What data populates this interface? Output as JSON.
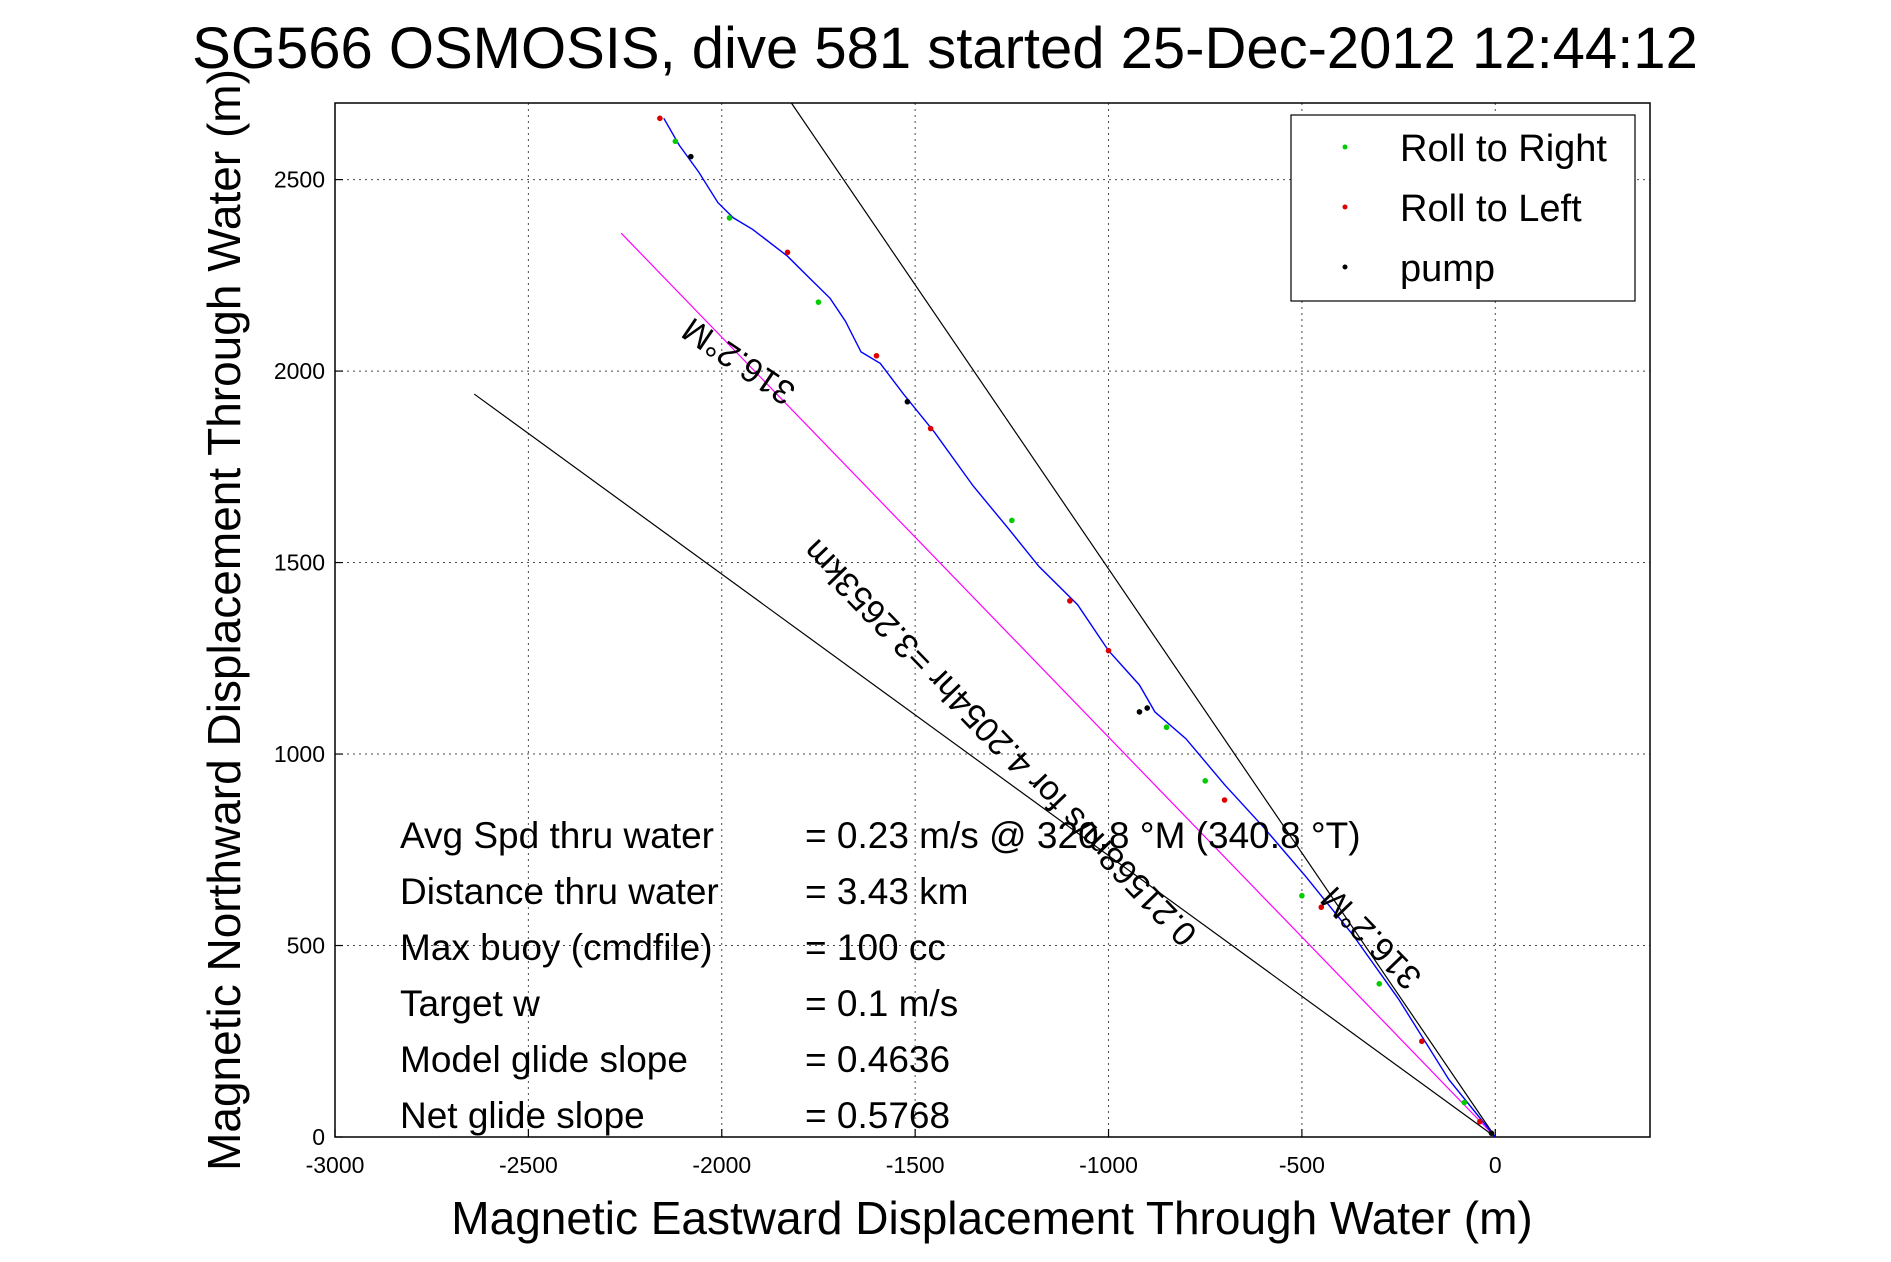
{
  "chart_data": {
    "type": "line",
    "title": "SG566 OSMOSIS, dive 581 started 25-Dec-2012 12:44:12",
    "xlabel": "Magnetic Eastward Displacement Through Water (m)",
    "ylabel": "Magnetic Northward Displacement Through Water (m)",
    "xlim": [
      -3000,
      400
    ],
    "ylim": [
      0,
      2700
    ],
    "xticks": [
      -3000,
      -2500,
      -2000,
      -1500,
      -1000,
      -500,
      0
    ],
    "yticks": [
      0,
      500,
      1000,
      1500,
      2000,
      2500
    ],
    "grid": true,
    "legend_position": "top-right",
    "legend": [
      {
        "label": "Roll to Right",
        "color": "#00cc00"
      },
      {
        "label": "Roll to Left",
        "color": "#dd0000"
      },
      {
        "label": "pump",
        "color": "#000000"
      }
    ],
    "track": {
      "color": "#0000ff",
      "x": [
        0,
        -120,
        -250,
        -370,
        -490,
        -600,
        -700,
        -800,
        -880,
        -920,
        -1000,
        -1080,
        -1180,
        -1260,
        -1350,
        -1450,
        -1530,
        -1590,
        -1640,
        -1680,
        -1720,
        -1770,
        -1830,
        -1920,
        -1970,
        -2010,
        -2060,
        -2110,
        -2150
      ],
      "y": [
        0,
        150,
        360,
        530,
        680,
        810,
        920,
        1040,
        1110,
        1180,
        1270,
        1390,
        1490,
        1590,
        1700,
        1840,
        1940,
        2020,
        2050,
        2130,
        2190,
        2240,
        2300,
        2370,
        2400,
        2440,
        2520,
        2590,
        2660
      ]
    },
    "reference_lines": [
      {
        "name": "projected heading line",
        "color": "#ff00ff",
        "x": [
          0,
          -2260
        ],
        "y": [
          0,
          2360
        ]
      },
      {
        "name": "heading line",
        "color": "#000000",
        "x": [
          0,
          -1820
        ],
        "y": [
          0,
          2700
        ]
      },
      {
        "name": "heading line",
        "color": "#000000",
        "x": [
          0,
          -2640
        ],
        "y": [
          0,
          1940
        ]
      }
    ],
    "markers": {
      "roll_right": {
        "color": "#00cc00",
        "x": [
          -80,
          -300,
          -500,
          -750,
          -850,
          -1250,
          -1750,
          -1980,
          -2120
        ],
        "y": [
          90,
          400,
          630,
          930,
          1070,
          1610,
          2180,
          2400,
          2600
        ]
      },
      "roll_left": {
        "color": "#dd0000",
        "x": [
          -40,
          -190,
          -450,
          -700,
          -1000,
          -1100,
          -1460,
          -1600,
          -1830,
          -2160
        ],
        "y": [
          40,
          250,
          600,
          880,
          1270,
          1400,
          1850,
          2040,
          2310,
          2660
        ]
      },
      "pump": {
        "color": "#000000",
        "x": [
          -10,
          -900,
          -920,
          -1520,
          -2080
        ],
        "y": [
          10,
          1120,
          1110,
          1920,
          2560
        ]
      }
    },
    "annotations": [
      {
        "text": "316.2°M",
        "x": -1940,
        "y": 2050,
        "rotation": 214
      },
      {
        "text": "0.21568m/s for 4.2054hr =3.2653km",
        "x": -1260,
        "y": 1050,
        "rotation": 226
      },
      {
        "text": "316.2°M",
        "x": -300,
        "y": 540,
        "rotation": 226
      }
    ]
  },
  "stats": [
    {
      "label": "Avg Spd thru water",
      "value": "=  0.23 m/s @  320.8 °M (340.8 °T)"
    },
    {
      "label": "Distance thru water",
      "value": "=  3.43 km"
    },
    {
      "label": "Max buoy (cmdfile)",
      "value": "= 100 cc"
    },
    {
      "label": "Target w",
      "value": "= 0.1 m/s"
    },
    {
      "label": "Model glide slope",
      "value": "= 0.4636"
    },
    {
      "label": "Net glide slope",
      "value": "= 0.5768"
    }
  ]
}
